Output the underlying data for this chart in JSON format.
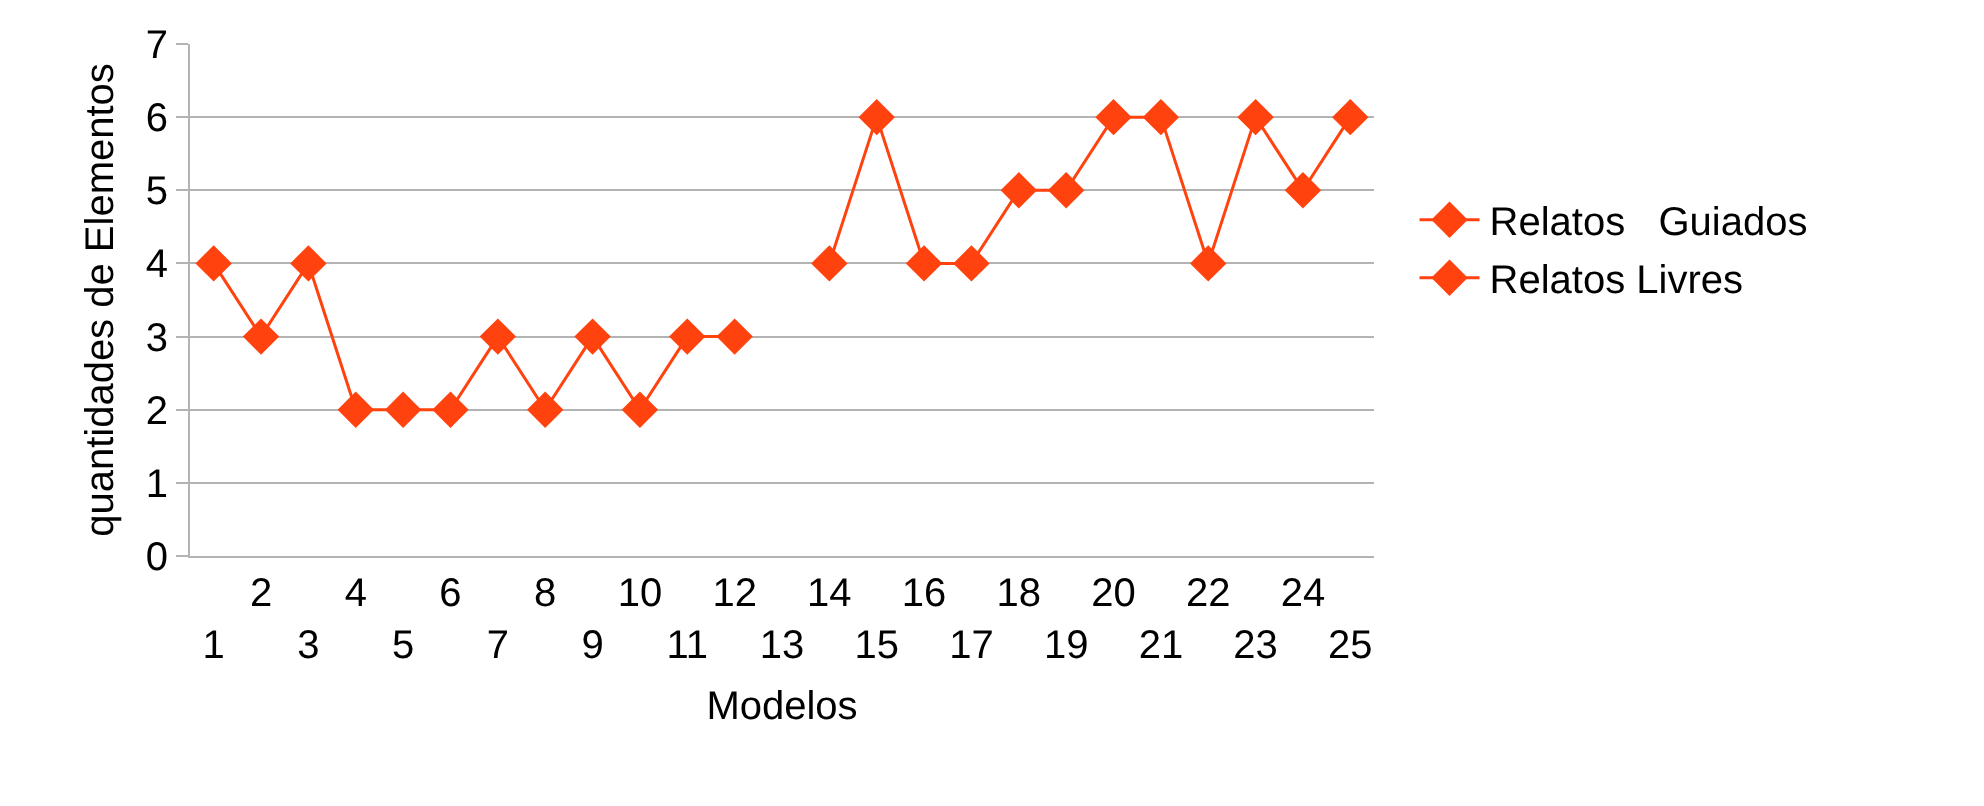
{
  "chart_data": {
    "type": "line",
    "xlabel": "Modelos",
    "ylabel": "quantidades de Elementos",
    "categories": [
      "1",
      "2",
      "3",
      "4",
      "5",
      "6",
      "7",
      "8",
      "9",
      "10",
      "11",
      "12",
      "13",
      "14",
      "15",
      "16",
      "17",
      "18",
      "19",
      "20",
      "21",
      "22",
      "23",
      "24",
      "25"
    ],
    "series": [
      {
        "name": "Relatos   Guiados",
        "color": "#ff420e",
        "values": [
          4,
          3,
          4,
          2,
          2,
          2,
          3,
          2,
          3,
          2,
          3,
          3,
          null,
          4,
          6,
          4,
          4,
          5,
          5,
          6,
          6,
          4,
          6,
          5,
          6
        ]
      },
      {
        "name": "Relatos Livres",
        "color": "#ff420e",
        "values": [
          null,
          null,
          null,
          null,
          null,
          null,
          null,
          null,
          null,
          null,
          null,
          null,
          null,
          null,
          null,
          null,
          null,
          null,
          null,
          null,
          null,
          null,
          null,
          null,
          null
        ]
      }
    ],
    "ylim": [
      0,
      7
    ],
    "yticks": [
      0,
      1,
      2,
      3,
      4,
      5,
      6,
      7
    ],
    "grid": "y",
    "legend": "right",
    "marker": "diamond",
    "line_style": "solid"
  }
}
